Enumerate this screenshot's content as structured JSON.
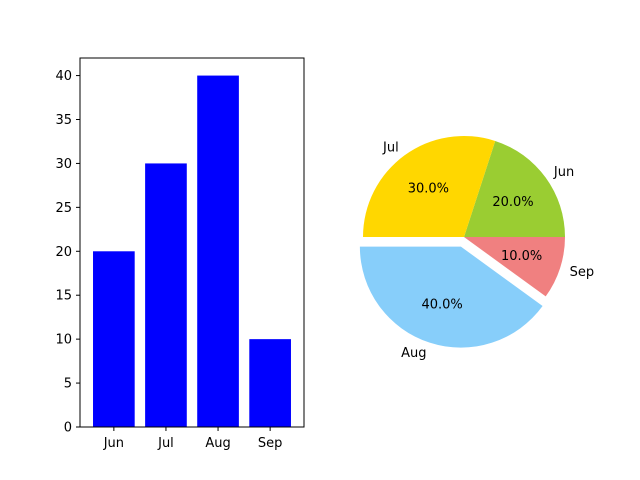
{
  "chart_data": [
    {
      "type": "bar",
      "categories": [
        "Jun",
        "Jul",
        "Aug",
        "Sep"
      ],
      "values": [
        20,
        30,
        40,
        10
      ],
      "color": "#0000ff",
      "ylim": [
        0,
        42
      ],
      "yticks": [
        0,
        5,
        10,
        15,
        20,
        25,
        30,
        35,
        40
      ],
      "title": "",
      "xlabel": "",
      "ylabel": ""
    },
    {
      "type": "pie",
      "labels": [
        "Jun",
        "Jul",
        "Aug",
        "Sep"
      ],
      "values": [
        20,
        30,
        40,
        10
      ],
      "percent_labels": [
        "20.0%",
        "30.0%",
        "40.0%",
        "10.0%"
      ],
      "colors": [
        "#9acd32",
        "#ffd700",
        "#87cefa",
        "#f08080"
      ],
      "explode": [
        0,
        0,
        0.1,
        0
      ],
      "start_angle": 0,
      "direction": "counterclockwise"
    }
  ]
}
